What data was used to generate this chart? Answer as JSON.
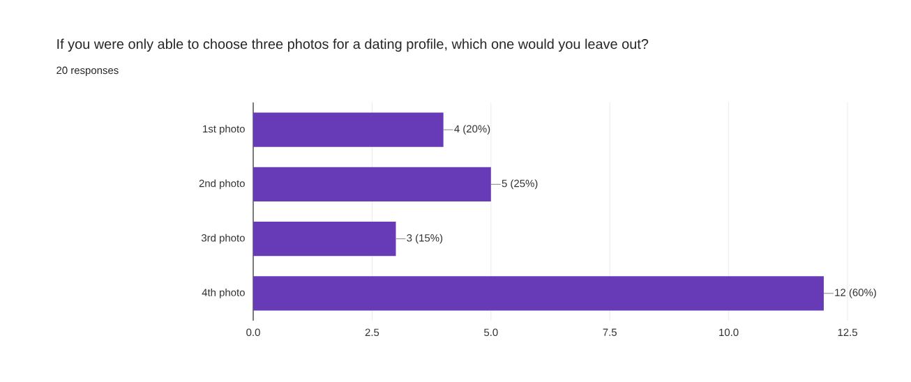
{
  "chart_data": {
    "type": "bar",
    "orientation": "horizontal",
    "title": "If you were only able to choose three photos for a dating profile, which one would you leave out?",
    "subtitle": "20 responses",
    "categories": [
      "1st photo",
      "2nd photo",
      "3rd photo",
      "4th photo"
    ],
    "values": [
      4,
      5,
      3,
      12
    ],
    "value_labels": [
      "4 (20%)",
      "5 (25%)",
      "3 (15%)",
      "12 (60%)"
    ],
    "color": "#673ab7",
    "xlim": [
      0,
      12.5
    ],
    "xticks": [
      {
        "value": 0,
        "label": "0.0"
      },
      {
        "value": 2.5,
        "label": "2.5"
      },
      {
        "value": 5,
        "label": "5.0"
      },
      {
        "value": 7.5,
        "label": "7.5"
      },
      {
        "value": 10,
        "label": "10.0"
      },
      {
        "value": 12.5,
        "label": "12.5"
      }
    ],
    "grid": "x"
  }
}
